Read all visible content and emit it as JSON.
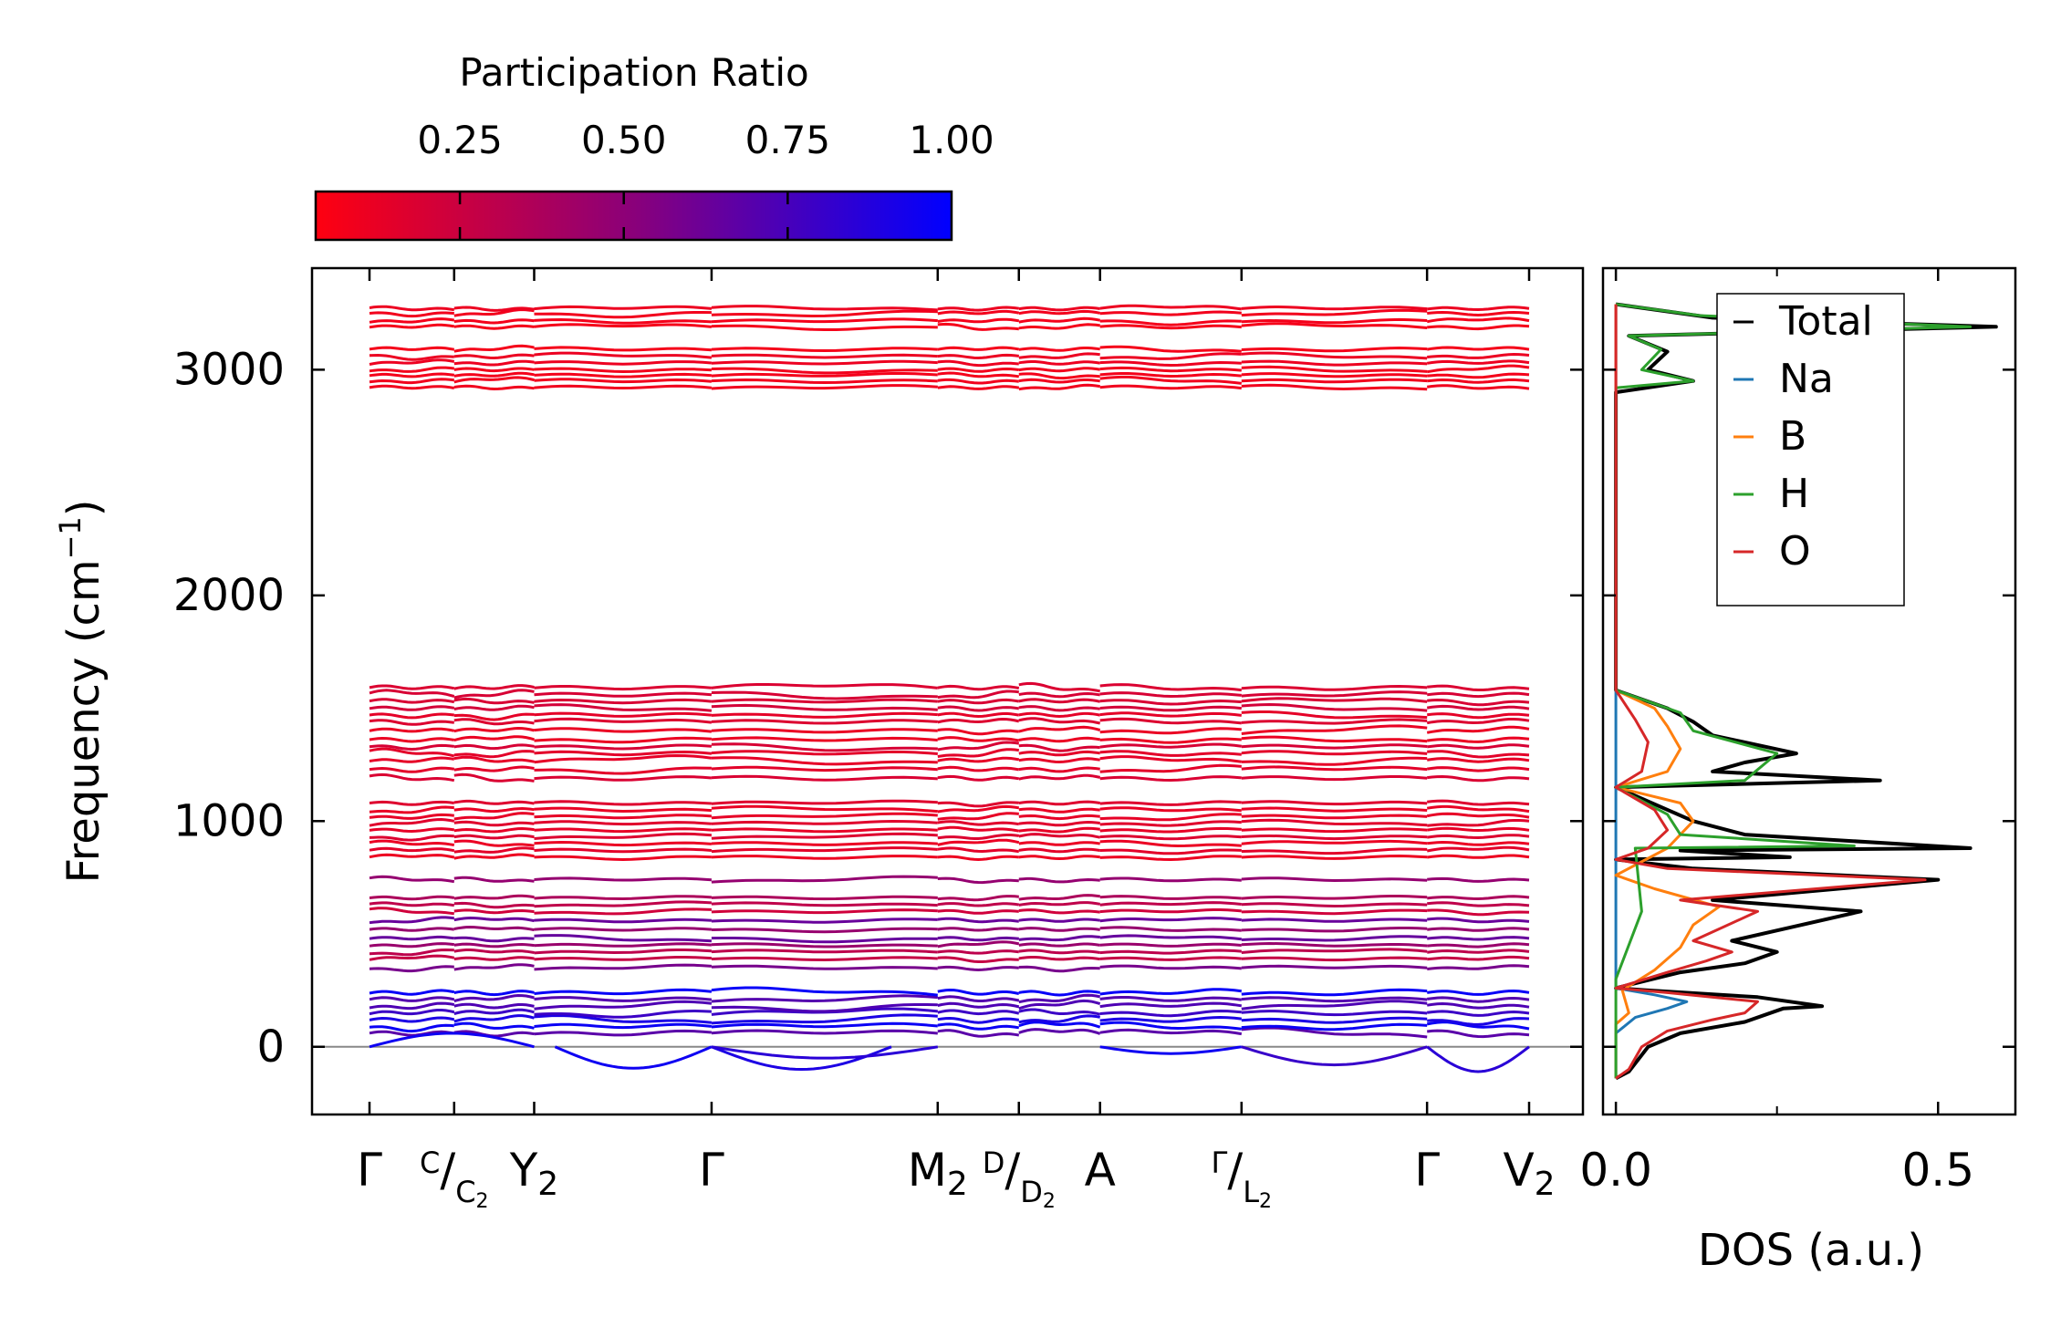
{
  "chart_data": [
    {
      "type": "line",
      "title": "",
      "xlabel": "",
      "ylabel": "Frequency (cm",
      "ylabel_sup": "−1",
      "ylabel_end": ")",
      "ylim": [
        -300,
        3450
      ],
      "yticks": [
        0,
        1000,
        2000,
        3000
      ],
      "ytick_labels": [
        "0",
        "1000",
        "2000",
        "3000"
      ],
      "grid": false,
      "kpath": [
        {
          "label": "Γ",
          "pos": 0.0
        },
        {
          "label": "C",
          "sub_label": "C",
          "sub_index": "2",
          "pos": 0.073,
          "split": true
        },
        {
          "label": "Y",
          "label_sub": "2",
          "pos": 0.142
        },
        {
          "label": "Γ",
          "pos": 0.295
        },
        {
          "label": "M",
          "label_sub": "2",
          "pos": 0.49
        },
        {
          "label": "D",
          "sub_label": "D",
          "sub_index": "2",
          "pos": 0.56,
          "split": true
        },
        {
          "label": "A",
          "pos": 0.63
        },
        {
          "label": "Γ",
          "sub_label": "L",
          "sub_index": "2",
          "pos": 0.752,
          "split": true
        },
        {
          "label": "Γ",
          "pos": 0.912
        },
        {
          "label": "V",
          "label_sub": "2",
          "pos": 1.0
        }
      ],
      "bands_approx_cm1": {
        "high": [
          2920,
          2950,
          2975,
          3000,
          3030,
          3060,
          3090,
          3190,
          3215,
          3250,
          3270
        ],
        "mid": [
          1190,
          1230,
          1270,
          1300,
          1330,
          1360,
          1400,
          1440,
          1470,
          1500,
          1530,
          1560,
          1590
        ],
        "lower_mid": [
          840,
          870,
          900,
          930,
          960,
          990,
          1020,
          1050,
          1080
        ],
        "low": [
          600,
          630,
          660,
          740,
          560,
          520,
          480,
          450,
          420,
          390,
          350
        ],
        "acoustic_optic": [
          60,
          90,
          120,
          150,
          180,
          210,
          240
        ]
      },
      "colorbar": {
        "title": "Participation Ratio",
        "ticks": [
          0.25,
          0.5,
          0.75,
          1.0
        ],
        "tick_labels": [
          "0.25",
          "0.50",
          "0.75",
          "1.00"
        ],
        "range": [
          0.03,
          1.0
        ],
        "color_low": "#ff0010",
        "color_mid": "#8a007a",
        "color_high": "#0000ff"
      }
    },
    {
      "type": "line",
      "title": "",
      "xlabel": "DOS (a.u.)",
      "xlim": [
        -0.02,
        0.62
      ],
      "xticks": [
        0.0,
        0.5
      ],
      "xtick_labels": [
        "0.0",
        "0.5"
      ],
      "ylim": [
        -300,
        3450
      ],
      "legend_position": "top-right",
      "series": [
        {
          "name": "Total",
          "color": "#000000",
          "points": [
            [
              0.0,
              -140
            ],
            [
              0.02,
              -110
            ],
            [
              0.05,
              0
            ],
            [
              0.1,
              60
            ],
            [
              0.2,
              110
            ],
            [
              0.26,
              170
            ],
            [
              0.32,
              180
            ],
            [
              0.22,
              220
            ],
            [
              0.05,
              250
            ],
            [
              0.0,
              260
            ],
            [
              0.1,
              330
            ],
            [
              0.2,
              370
            ],
            [
              0.25,
              420
            ],
            [
              0.18,
              470
            ],
            [
              0.38,
              600
            ],
            [
              0.15,
              650
            ],
            [
              0.5,
              740
            ],
            [
              0.12,
              790
            ],
            [
              0.0,
              830
            ],
            [
              0.27,
              840
            ],
            [
              0.1,
              870
            ],
            [
              0.55,
              880
            ],
            [
              0.2,
              940
            ],
            [
              0.12,
              1000
            ],
            [
              0.08,
              1050
            ],
            [
              0.0,
              1150
            ],
            [
              0.41,
              1180
            ],
            [
              0.15,
              1220
            ],
            [
              0.2,
              1260
            ],
            [
              0.28,
              1300
            ],
            [
              0.15,
              1380
            ],
            [
              0.12,
              1440
            ],
            [
              0.08,
              1500
            ],
            [
              0.0,
              1580
            ],
            [
              0.0,
              2900
            ],
            [
              0.12,
              2950
            ],
            [
              0.05,
              3000
            ],
            [
              0.08,
              3080
            ],
            [
              0.02,
              3150
            ],
            [
              0.59,
              3190
            ],
            [
              0.15,
              3230
            ],
            [
              0.0,
              3290
            ]
          ]
        },
        {
          "name": "Na",
          "color": "#1f77b4",
          "points": [
            [
              0.0,
              -140
            ],
            [
              0.0,
              60
            ],
            [
              0.03,
              130
            ],
            [
              0.08,
              170
            ],
            [
              0.11,
              200
            ],
            [
              0.06,
              230
            ],
            [
              0.0,
              260
            ],
            [
              0.0,
              1580
            ],
            [
              0.0,
              3290
            ]
          ]
        },
        {
          "name": "B",
          "color": "#ff7f0e",
          "points": [
            [
              0.0,
              -140
            ],
            [
              0.0,
              100
            ],
            [
              0.02,
              150
            ],
            [
              0.01,
              250
            ],
            [
              0.06,
              340
            ],
            [
              0.1,
              440
            ],
            [
              0.12,
              540
            ],
            [
              0.16,
              620
            ],
            [
              0.06,
              700
            ],
            [
              0.0,
              760
            ],
            [
              0.08,
              880
            ],
            [
              0.12,
              1000
            ],
            [
              0.1,
              1080
            ],
            [
              0.0,
              1150
            ],
            [
              0.08,
              1220
            ],
            [
              0.1,
              1320
            ],
            [
              0.08,
              1420
            ],
            [
              0.06,
              1500
            ],
            [
              0.0,
              1580
            ],
            [
              0.0,
              3290
            ]
          ]
        },
        {
          "name": "H",
          "color": "#2ca02c",
          "points": [
            [
              0.0,
              -140
            ],
            [
              0.0,
              300
            ],
            [
              0.04,
              600
            ],
            [
              0.03,
              880
            ],
            [
              0.37,
              890
            ],
            [
              0.1,
              940
            ],
            [
              0.08,
              1030
            ],
            [
              0.0,
              1150
            ],
            [
              0.2,
              1180
            ],
            [
              0.25,
              1300
            ],
            [
              0.12,
              1400
            ],
            [
              0.1,
              1480
            ],
            [
              0.0,
              1580
            ],
            [
              0.0,
              2920
            ],
            [
              0.12,
              2950
            ],
            [
              0.04,
              3000
            ],
            [
              0.07,
              3090
            ],
            [
              0.02,
              3150
            ],
            [
              0.55,
              3190
            ],
            [
              0.13,
              3240
            ],
            [
              0.0,
              3290
            ]
          ]
        },
        {
          "name": "O",
          "color": "#d62728",
          "points": [
            [
              0.0,
              -140
            ],
            [
              0.02,
              -100
            ],
            [
              0.04,
              0
            ],
            [
              0.08,
              70
            ],
            [
              0.15,
              120
            ],
            [
              0.2,
              150
            ],
            [
              0.22,
              200
            ],
            [
              0.08,
              240
            ],
            [
              0.0,
              260
            ],
            [
              0.08,
              330
            ],
            [
              0.14,
              380
            ],
            [
              0.18,
              420
            ],
            [
              0.12,
              470
            ],
            [
              0.22,
              600
            ],
            [
              0.1,
              650
            ],
            [
              0.48,
              740
            ],
            [
              0.08,
              790
            ],
            [
              0.0,
              830
            ],
            [
              0.05,
              880
            ],
            [
              0.08,
              960
            ],
            [
              0.06,
              1050
            ],
            [
              0.0,
              1150
            ],
            [
              0.04,
              1220
            ],
            [
              0.05,
              1350
            ],
            [
              0.03,
              1450
            ],
            [
              0.0,
              1580
            ],
            [
              0.0,
              3290
            ]
          ]
        }
      ]
    }
  ]
}
